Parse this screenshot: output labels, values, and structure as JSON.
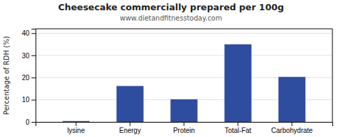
{
  "chart_data": {
    "type": "bar",
    "title": "Cheesecake commercially prepared per 100g",
    "subtitle": "www.dietandfitnesstoday.com",
    "ylabel": "Percentage of RDH (%)",
    "categories": [
      "lysine",
      "Energy",
      "Protein",
      "Total-Fat",
      "Carbohydrate"
    ],
    "values": [
      0.4,
      16.2,
      10.2,
      35.0,
      20.3
    ],
    "color": "#2e4d9e",
    "ylim": [
      0,
      42
    ],
    "yticks": [
      0,
      10,
      20,
      30,
      40
    ],
    "grid": true
  }
}
